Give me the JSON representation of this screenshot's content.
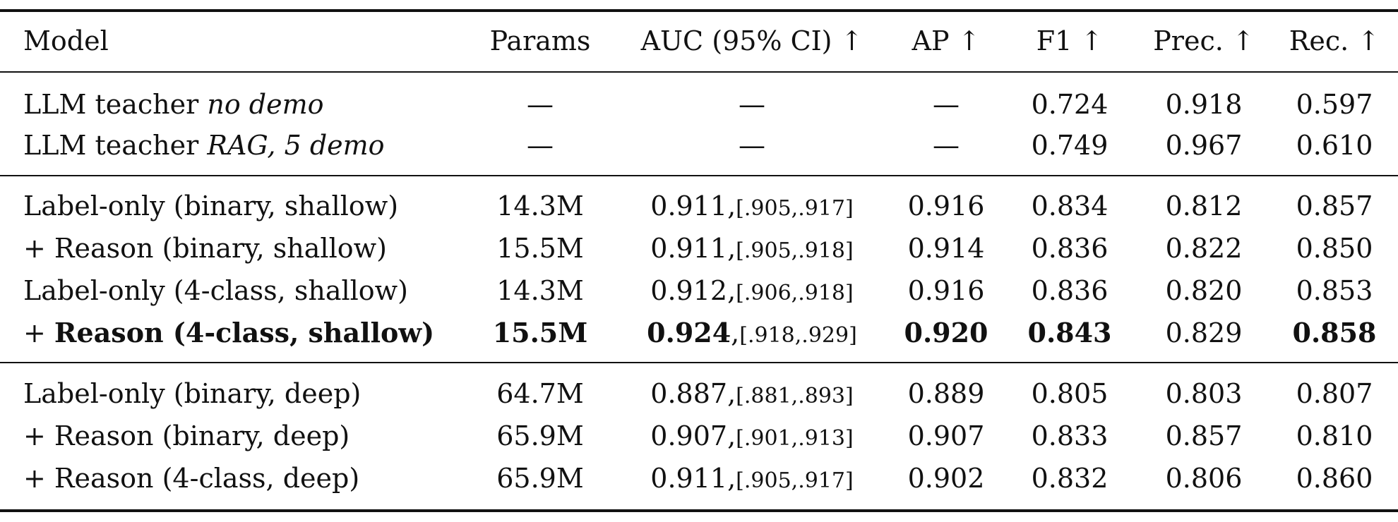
{
  "table": {
    "headers": {
      "model": "Model",
      "params": "Params",
      "auc": "AUC (95% CI) ↑",
      "ap": "AP ↑",
      "f1": "F1 ↑",
      "prec": "Prec. ↑",
      "rec": "Rec. ↑"
    },
    "teacher_rows": [
      {
        "model": "LLM teacher ",
        "model_italic": "no demo",
        "params": "—",
        "auc": "—",
        "ap": "—",
        "f1": "0.724",
        "prec": "0.918",
        "rec": "0.597"
      },
      {
        "model": "LLM teacher ",
        "model_italic": "RAG, 5 demo",
        "params": "—",
        "auc": "—",
        "ap": "—",
        "f1": "0.749",
        "prec": "0.967",
        "rec": "0.610"
      }
    ],
    "shallow_rows": [
      {
        "model": "Label-only (binary, shallow)",
        "params": "14.3M",
        "auc": "0.911",
        "ci": "[.905,.917]",
        "ap": "0.916",
        "f1": "0.834",
        "prec": "0.812",
        "rec": "0.857"
      },
      {
        "model": "+ Reason (binary, shallow)",
        "params": "15.5M",
        "auc": "0.911",
        "ci": "[.905,.918]",
        "ap": "0.914",
        "f1": "0.836",
        "prec": "0.822",
        "rec": "0.850"
      },
      {
        "model": "Label-only (4-class, shallow)",
        "params": "14.3M",
        "auc": "0.912",
        "ci": "[.906,.918]",
        "ap": "0.916",
        "f1": "0.836",
        "prec": "0.820",
        "rec": "0.853"
      },
      {
        "model_prefix": "+ ",
        "model": "Reason (4-class, shallow)",
        "params": "15.5M",
        "auc": "0.924",
        "ci": "[.918,.929]",
        "ap": "0.920",
        "f1": "0.843",
        "prec": "0.829",
        "rec": "0.858"
      }
    ],
    "deep_rows": [
      {
        "model": "Label-only (binary, deep)",
        "params": "64.7M",
        "auc": "0.887",
        "ci": "[.881,.893]",
        "ap": "0.889",
        "f1": "0.805",
        "prec": "0.803",
        "rec": "0.807"
      },
      {
        "model": "+ Reason (binary, deep)",
        "params": "65.9M",
        "auc": "0.907",
        "ci": "[.901,.913]",
        "ap": "0.907",
        "f1": "0.833",
        "prec": "0.857",
        "rec": "0.810"
      },
      {
        "model": "+ Reason (4-class, deep)",
        "params": "65.9M",
        "auc": "0.911",
        "ci": "[.905,.917]",
        "ap": "0.902",
        "f1": "0.832",
        "prec": "0.806",
        "rec": "0.860"
      }
    ]
  }
}
